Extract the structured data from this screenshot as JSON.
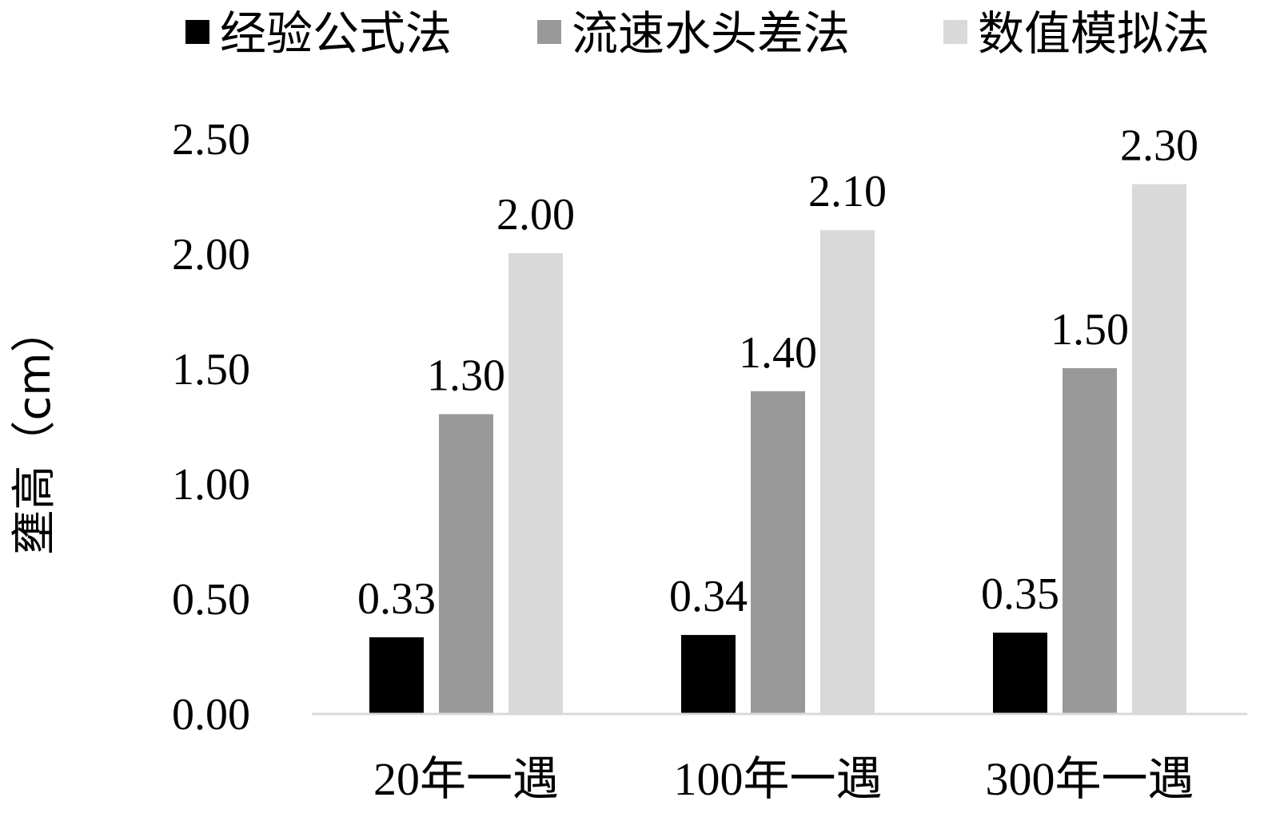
{
  "chart_data": {
    "type": "bar",
    "title": "",
    "xlabel": "",
    "ylabel": "壅高（cm）",
    "categories": [
      "20年一遇",
      "100年一遇",
      "300年一遇"
    ],
    "series": [
      {
        "name": "经验公式法",
        "values": [
          0.33,
          0.34,
          0.35
        ],
        "color": "#000000",
        "labels": [
          "0.33",
          "0.34",
          "0.35"
        ]
      },
      {
        "name": "流速水头差法",
        "values": [
          1.3,
          1.4,
          1.5
        ],
        "color": "#999999",
        "labels": [
          "1.30",
          "1.40",
          "1.50"
        ]
      },
      {
        "name": "数值模拟法",
        "values": [
          2.0,
          2.1,
          2.3
        ],
        "color": "#d9d9d9",
        "labels": [
          "2.00",
          "2.10",
          "2.30"
        ]
      }
    ],
    "ylim": [
      0,
      2.5
    ],
    "yticks": [
      "0.00",
      "0.50",
      "1.00",
      "1.50",
      "2.00",
      "2.50"
    ],
    "grid": false,
    "legend_position": "top",
    "axis_color": "#d9d9d9"
  }
}
